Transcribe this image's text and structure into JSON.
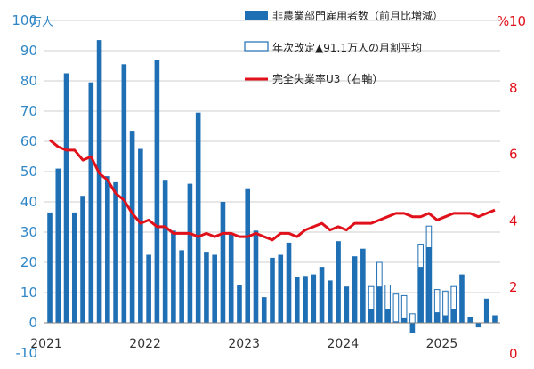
{
  "chart_data": {
    "type": "bar",
    "unit_left": "万人",
    "unit_right": "%",
    "left_axis": {
      "min": -10,
      "max": 100,
      "step": 10
    },
    "right_axis": {
      "min": 0,
      "max": 10,
      "step": 2
    },
    "left_ticks": [
      "-10",
      "0",
      "10",
      "20",
      "30",
      "40",
      "50",
      "60",
      "70",
      "80",
      "90",
      "100"
    ],
    "right_ticks": [
      "0",
      "2",
      "4",
      "6",
      "8",
      "10"
    ],
    "year_labels": [
      "2021",
      "2022",
      "2023",
      "2024",
      "2025"
    ],
    "colors": {
      "bar": "#1F6FB5",
      "line": "#E0111A",
      "left_axis": "#2F86C7",
      "right_axis": "#E0111A",
      "grid": "#BFBFBF"
    },
    "legend": [
      {
        "label": "非農業部門雇用者数（前月比増減）",
        "kind": "solid-bar"
      },
      {
        "label": "年次改定▲91.1万人の月割平均",
        "kind": "hollow-bar"
      },
      {
        "label": "完全失業率U3（右軸）",
        "kind": "line"
      }
    ],
    "series": [
      {
        "name": "非農業部門雇用者数（前月比増減）",
        "unit": "万人",
        "values": [
          36.5,
          51,
          82.5,
          36.5,
          42,
          79.5,
          93.5,
          48.5,
          46.5,
          85.5,
          63.5,
          57.5,
          22.5,
          87,
          47,
          30.5,
          24,
          46,
          69.5,
          23.5,
          22.5,
          40,
          29.5,
          12.5,
          44.5,
          30.5,
          8.5,
          21.5,
          22.5,
          26.5,
          15,
          15.5,
          16,
          18.5,
          14,
          27,
          12,
          22,
          24.5,
          4.5,
          12,
          4.5,
          0.5,
          1.5,
          -3.5,
          18.5,
          25,
          3.5,
          2.5,
          4.5,
          16,
          2,
          -1.5,
          8,
          2.5
        ]
      },
      {
        "name": "年次改定▲91.1万人の月割平均",
        "unit": "万人",
        "values": [
          null,
          null,
          null,
          null,
          null,
          null,
          null,
          null,
          null,
          null,
          null,
          null,
          null,
          null,
          null,
          null,
          null,
          null,
          null,
          null,
          null,
          null,
          null,
          null,
          null,
          null,
          null,
          null,
          null,
          null,
          null,
          null,
          null,
          null,
          null,
          null,
          null,
          null,
          null,
          12,
          20,
          12.5,
          9.5,
          9,
          3,
          26,
          32,
          11,
          10.5,
          12,
          null,
          null,
          null,
          null,
          null
        ]
      },
      {
        "name": "完全失業率U3（右軸）",
        "unit": "%",
        "values": [
          6.4,
          6.2,
          6.1,
          6.1,
          5.8,
          5.9,
          5.4,
          5.2,
          4.8,
          4.6,
          4.2,
          3.9,
          4.0,
          3.8,
          3.8,
          3.6,
          3.6,
          3.6,
          3.5,
          3.6,
          3.5,
          3.6,
          3.6,
          3.5,
          3.5,
          3.6,
          3.5,
          3.4,
          3.6,
          3.6,
          3.5,
          3.7,
          3.8,
          3.9,
          3.7,
          3.8,
          3.7,
          3.9,
          3.9,
          3.9,
          4.0,
          4.1,
          4.2,
          4.2,
          4.1,
          4.1,
          4.2,
          4.0,
          4.1,
          4.2,
          4.2,
          4.2,
          4.1,
          4.2,
          4.3
        ]
      }
    ]
  }
}
